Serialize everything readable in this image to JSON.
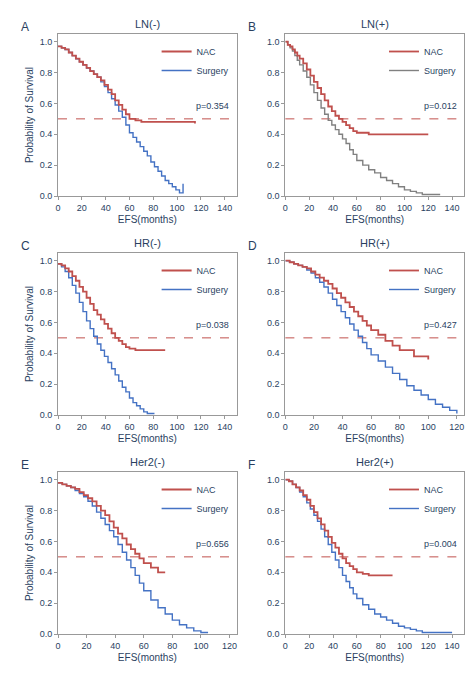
{
  "chart_data": [
    {
      "type": "step",
      "title": "LN(-)",
      "panel_label": "A",
      "annotations": [
        "p=0.354"
      ],
      "xlabel": "EFS(months)",
      "ylabel": "Probability of Survival",
      "xlim": [
        0,
        150
      ],
      "xticks": [
        0,
        20,
        40,
        60,
        80,
        100,
        120,
        140
      ],
      "ylim": [
        0.0,
        1.05
      ],
      "yticks": [
        {
          "value": 0.0,
          "label": "0.0"
        },
        0.2,
        0.4,
        0.6,
        0.8,
        {
          "value": 1.0,
          "label": "1.0"
        }
      ],
      "grid": false,
      "legend": "upper right",
      "reference_line": {
        "y": 0.5,
        "color": "#c0504d",
        "line_style": "dashed"
      },
      "series": [
        {
          "name": "NAC",
          "color": "#c0504d",
          "x": [
            0,
            3,
            6,
            9,
            12,
            15,
            18,
            21,
            24,
            27,
            30,
            33,
            36,
            39,
            42,
            45,
            48,
            51,
            54,
            57,
            60,
            65,
            70,
            115
          ],
          "values": [
            0.97,
            0.96,
            0.95,
            0.93,
            0.91,
            0.89,
            0.87,
            0.85,
            0.83,
            0.81,
            0.79,
            0.77,
            0.75,
            0.72,
            0.69,
            0.66,
            0.62,
            0.59,
            0.56,
            0.53,
            0.5,
            0.49,
            0.48,
            0.47
          ]
        },
        {
          "name": "Surgery",
          "color": "#4472c4",
          "x": [
            0,
            3,
            6,
            9,
            12,
            15,
            18,
            21,
            24,
            27,
            30,
            33,
            36,
            39,
            42,
            45,
            48,
            51,
            54,
            57,
            60,
            63,
            66,
            69,
            72,
            75,
            78,
            81,
            84,
            87,
            90,
            93,
            96,
            99,
            102,
            105
          ],
          "values": [
            0.97,
            0.96,
            0.95,
            0.93,
            0.91,
            0.89,
            0.87,
            0.85,
            0.83,
            0.81,
            0.79,
            0.77,
            0.74,
            0.71,
            0.67,
            0.63,
            0.59,
            0.55,
            0.51,
            0.46,
            0.41,
            0.38,
            0.35,
            0.32,
            0.29,
            0.26,
            0.22,
            0.19,
            0.16,
            0.13,
            0.1,
            0.08,
            0.06,
            0.04,
            0.02,
            0.08
          ]
        }
      ]
    },
    {
      "type": "step",
      "title": "LN(+)",
      "panel_label": "B",
      "annotations": [
        "p=0.012"
      ],
      "xlabel": "EFS(months)",
      "xlim": [
        0,
        150
      ],
      "xticks": [
        0,
        20,
        40,
        60,
        80,
        100,
        120,
        140
      ],
      "ylim": [
        0.0,
        1.05
      ],
      "yticks": [
        {
          "value": 0.0,
          "label": "0.0"
        },
        0.2,
        0.4,
        0.6,
        0.8,
        {
          "value": 1.0,
          "label": "1.0"
        }
      ],
      "grid": false,
      "legend": "upper right",
      "reference_line": {
        "y": 0.5,
        "color": "#c0504d",
        "line_style": "dashed"
      },
      "series": [
        {
          "name": "NAC",
          "color": "#c0504d",
          "x": [
            0,
            2,
            4,
            6,
            8,
            10,
            12,
            15,
            18,
            21,
            24,
            27,
            30,
            33,
            36,
            39,
            42,
            45,
            48,
            51,
            54,
            57,
            60,
            70,
            80,
            90,
            100,
            110,
            120
          ],
          "values": [
            1.0,
            0.98,
            0.97,
            0.95,
            0.93,
            0.91,
            0.89,
            0.86,
            0.82,
            0.78,
            0.74,
            0.7,
            0.66,
            0.62,
            0.58,
            0.55,
            0.52,
            0.5,
            0.48,
            0.46,
            0.44,
            0.42,
            0.41,
            0.4,
            0.4,
            0.4,
            0.4,
            0.4,
            0.4
          ]
        },
        {
          "name": "Surgery",
          "color": "#808080",
          "x": [
            0,
            2,
            4,
            6,
            8,
            10,
            12,
            15,
            18,
            21,
            24,
            27,
            30,
            33,
            36,
            39,
            42,
            45,
            48,
            51,
            54,
            57,
            60,
            65,
            70,
            75,
            80,
            85,
            90,
            95,
            100,
            105,
            110,
            115,
            120,
            125,
            130
          ],
          "values": [
            1.0,
            0.98,
            0.96,
            0.94,
            0.91,
            0.88,
            0.85,
            0.81,
            0.77,
            0.72,
            0.67,
            0.62,
            0.57,
            0.53,
            0.49,
            0.46,
            0.43,
            0.4,
            0.37,
            0.34,
            0.3,
            0.27,
            0.23,
            0.2,
            0.17,
            0.15,
            0.12,
            0.1,
            0.08,
            0.06,
            0.04,
            0.03,
            0.02,
            0.01,
            0.01,
            0.01,
            0.01
          ]
        }
      ]
    },
    {
      "type": "step",
      "title": "HR(-)",
      "panel_label": "C",
      "annotations": [
        "p=0.038"
      ],
      "xlabel": "EFS(months)",
      "ylabel": "Probability of Survival",
      "xlim": [
        0,
        150
      ],
      "xticks": [
        0,
        20,
        40,
        60,
        80,
        100,
        120,
        140
      ],
      "ylim": [
        0.0,
        1.05
      ],
      "yticks": [
        {
          "value": 0.0,
          "label": "0.0"
        },
        0.2,
        0.4,
        0.6,
        0.8,
        {
          "value": 1.0,
          "label": "1.0"
        }
      ],
      "grid": false,
      "legend": "upper right",
      "reference_line": {
        "y": 0.5,
        "color": "#c0504d",
        "line_style": "dashed"
      },
      "series": [
        {
          "name": "NAC",
          "color": "#c0504d",
          "x": [
            0,
            3,
            6,
            9,
            12,
            15,
            18,
            21,
            24,
            27,
            30,
            33,
            36,
            39,
            42,
            45,
            48,
            51,
            54,
            57,
            60,
            65,
            70,
            80,
            90
          ],
          "values": [
            0.98,
            0.97,
            0.95,
            0.93,
            0.9,
            0.87,
            0.83,
            0.8,
            0.76,
            0.72,
            0.68,
            0.65,
            0.62,
            0.59,
            0.56,
            0.53,
            0.5,
            0.48,
            0.46,
            0.44,
            0.43,
            0.42,
            0.42,
            0.42,
            0.42
          ]
        },
        {
          "name": "Surgery",
          "color": "#4472c4",
          "x": [
            0,
            3,
            6,
            9,
            12,
            15,
            18,
            21,
            24,
            27,
            30,
            33,
            36,
            39,
            42,
            45,
            48,
            51,
            54,
            57,
            60,
            63,
            66,
            69,
            72,
            75,
            78,
            81
          ],
          "values": [
            0.98,
            0.96,
            0.93,
            0.89,
            0.84,
            0.79,
            0.73,
            0.67,
            0.61,
            0.56,
            0.51,
            0.46,
            0.42,
            0.38,
            0.34,
            0.3,
            0.26,
            0.22,
            0.18,
            0.15,
            0.11,
            0.08,
            0.06,
            0.04,
            0.02,
            0.01,
            0.01,
            0.01
          ]
        }
      ]
    },
    {
      "type": "step",
      "title": "HR(+)",
      "panel_label": "D",
      "annotations": [
        "p=0.427"
      ],
      "xlabel": "EFS(months)",
      "xlim": [
        0,
        125
      ],
      "xticks": [
        0,
        20,
        40,
        60,
        80,
        100,
        120
      ],
      "ylim": [
        0.0,
        1.05
      ],
      "yticks": [
        {
          "value": 0.0,
          "label": "0.0"
        },
        0.2,
        0.4,
        0.6,
        0.8,
        {
          "value": 1.0,
          "label": "1.0"
        }
      ],
      "grid": false,
      "legend": "upper right",
      "reference_line": {
        "y": 0.5,
        "color": "#c0504d",
        "line_style": "dashed"
      },
      "series": [
        {
          "name": "NAC",
          "color": "#c0504d",
          "x": [
            0,
            3,
            6,
            9,
            12,
            15,
            18,
            21,
            24,
            27,
            30,
            33,
            36,
            39,
            42,
            45,
            48,
            51,
            54,
            57,
            60,
            65,
            70,
            75,
            80,
            90,
            100
          ],
          "values": [
            1.0,
            0.99,
            0.98,
            0.97,
            0.96,
            0.95,
            0.93,
            0.91,
            0.89,
            0.87,
            0.85,
            0.82,
            0.79,
            0.76,
            0.73,
            0.7,
            0.67,
            0.64,
            0.61,
            0.58,
            0.55,
            0.52,
            0.48,
            0.45,
            0.42,
            0.38,
            0.36
          ]
        },
        {
          "name": "Surgery",
          "color": "#4472c4",
          "x": [
            0,
            3,
            6,
            9,
            12,
            15,
            18,
            21,
            24,
            27,
            30,
            33,
            36,
            39,
            42,
            45,
            48,
            51,
            54,
            57,
            60,
            65,
            70,
            75,
            80,
            85,
            90,
            95,
            100,
            105,
            110,
            115,
            120
          ],
          "values": [
            1.0,
            0.99,
            0.98,
            0.97,
            0.96,
            0.94,
            0.92,
            0.89,
            0.86,
            0.83,
            0.79,
            0.75,
            0.71,
            0.67,
            0.63,
            0.59,
            0.55,
            0.51,
            0.47,
            0.43,
            0.39,
            0.35,
            0.31,
            0.27,
            0.23,
            0.19,
            0.16,
            0.13,
            0.1,
            0.07,
            0.05,
            0.03,
            0.01
          ]
        }
      ]
    },
    {
      "type": "step",
      "title": "Her2(-)",
      "panel_label": "E",
      "annotations": [
        "p=0.656"
      ],
      "xlabel": "EFS(months)",
      "ylabel": "Probability of Survival",
      "xlim": [
        0,
        125
      ],
      "xticks": [
        0,
        20,
        40,
        60,
        80,
        100,
        120
      ],
      "ylim": [
        0.0,
        1.05
      ],
      "yticks": [
        {
          "value": 0.0,
          "label": "0.0"
        },
        0.2,
        0.4,
        0.6,
        0.8,
        {
          "value": 1.0,
          "label": "1.0"
        }
      ],
      "grid": false,
      "legend": "upper right",
      "reference_line": {
        "y": 0.5,
        "color": "#c0504d",
        "line_style": "dashed"
      },
      "series": [
        {
          "name": "NAC",
          "color": "#c0504d",
          "x": [
            0,
            3,
            6,
            9,
            12,
            15,
            18,
            21,
            24,
            27,
            30,
            33,
            36,
            39,
            42,
            45,
            48,
            51,
            54,
            57,
            60,
            65,
            70,
            75
          ],
          "values": [
            0.98,
            0.97,
            0.96,
            0.95,
            0.94,
            0.92,
            0.9,
            0.88,
            0.86,
            0.83,
            0.8,
            0.77,
            0.73,
            0.69,
            0.65,
            0.62,
            0.58,
            0.55,
            0.52,
            0.49,
            0.46,
            0.43,
            0.4,
            0.4
          ]
        },
        {
          "name": "Surgery",
          "color": "#4472c4",
          "x": [
            0,
            3,
            6,
            9,
            12,
            15,
            18,
            21,
            24,
            27,
            30,
            33,
            36,
            39,
            42,
            45,
            48,
            51,
            54,
            57,
            60,
            65,
            70,
            75,
            80,
            85,
            90,
            95,
            100,
            105
          ],
          "values": [
            0.98,
            0.97,
            0.96,
            0.95,
            0.93,
            0.91,
            0.89,
            0.86,
            0.83,
            0.79,
            0.75,
            0.71,
            0.67,
            0.63,
            0.58,
            0.53,
            0.48,
            0.43,
            0.38,
            0.33,
            0.28,
            0.22,
            0.17,
            0.13,
            0.09,
            0.06,
            0.04,
            0.02,
            0.01,
            0.01
          ]
        }
      ]
    },
    {
      "type": "step",
      "title": "Her2(+)",
      "panel_label": "F",
      "annotations": [
        "p=0.004"
      ],
      "xlabel": "EFS(months)",
      "xlim": [
        0,
        150
      ],
      "xticks": [
        0,
        20,
        40,
        60,
        80,
        100,
        120,
        140
      ],
      "ylim": [
        0.0,
        1.05
      ],
      "yticks": [
        {
          "value": 0.0,
          "label": "0.0"
        },
        0.2,
        0.4,
        0.6,
        0.8,
        {
          "value": 1.0,
          "label": "1.0"
        }
      ],
      "grid": false,
      "legend": "upper right",
      "reference_line": {
        "y": 0.5,
        "color": "#c0504d",
        "line_style": "dashed"
      },
      "series": [
        {
          "name": "NAC",
          "color": "#c0504d",
          "x": [
            0,
            3,
            6,
            9,
            12,
            15,
            18,
            21,
            24,
            27,
            30,
            33,
            36,
            39,
            42,
            45,
            48,
            51,
            54,
            57,
            60,
            65,
            70,
            80,
            90
          ],
          "values": [
            1.0,
            0.99,
            0.97,
            0.95,
            0.93,
            0.9,
            0.87,
            0.83,
            0.79,
            0.75,
            0.71,
            0.67,
            0.63,
            0.59,
            0.56,
            0.52,
            0.49,
            0.46,
            0.44,
            0.42,
            0.4,
            0.39,
            0.38,
            0.38,
            0.38
          ]
        },
        {
          "name": "Surgery",
          "color": "#4472c4",
          "x": [
            0,
            3,
            6,
            9,
            12,
            15,
            18,
            21,
            24,
            27,
            30,
            33,
            36,
            39,
            42,
            45,
            48,
            51,
            54,
            57,
            60,
            65,
            70,
            75,
            80,
            85,
            90,
            95,
            100,
            105,
            110,
            115,
            120,
            125,
            130,
            135,
            140
          ],
          "values": [
            1.0,
            0.99,
            0.97,
            0.95,
            0.92,
            0.89,
            0.85,
            0.81,
            0.77,
            0.73,
            0.68,
            0.63,
            0.58,
            0.53,
            0.48,
            0.43,
            0.38,
            0.34,
            0.3,
            0.26,
            0.23,
            0.19,
            0.16,
            0.13,
            0.11,
            0.09,
            0.07,
            0.05,
            0.04,
            0.03,
            0.02,
            0.01,
            0.01,
            0.01,
            0.01,
            0.01,
            0.01
          ]
        }
      ]
    }
  ]
}
